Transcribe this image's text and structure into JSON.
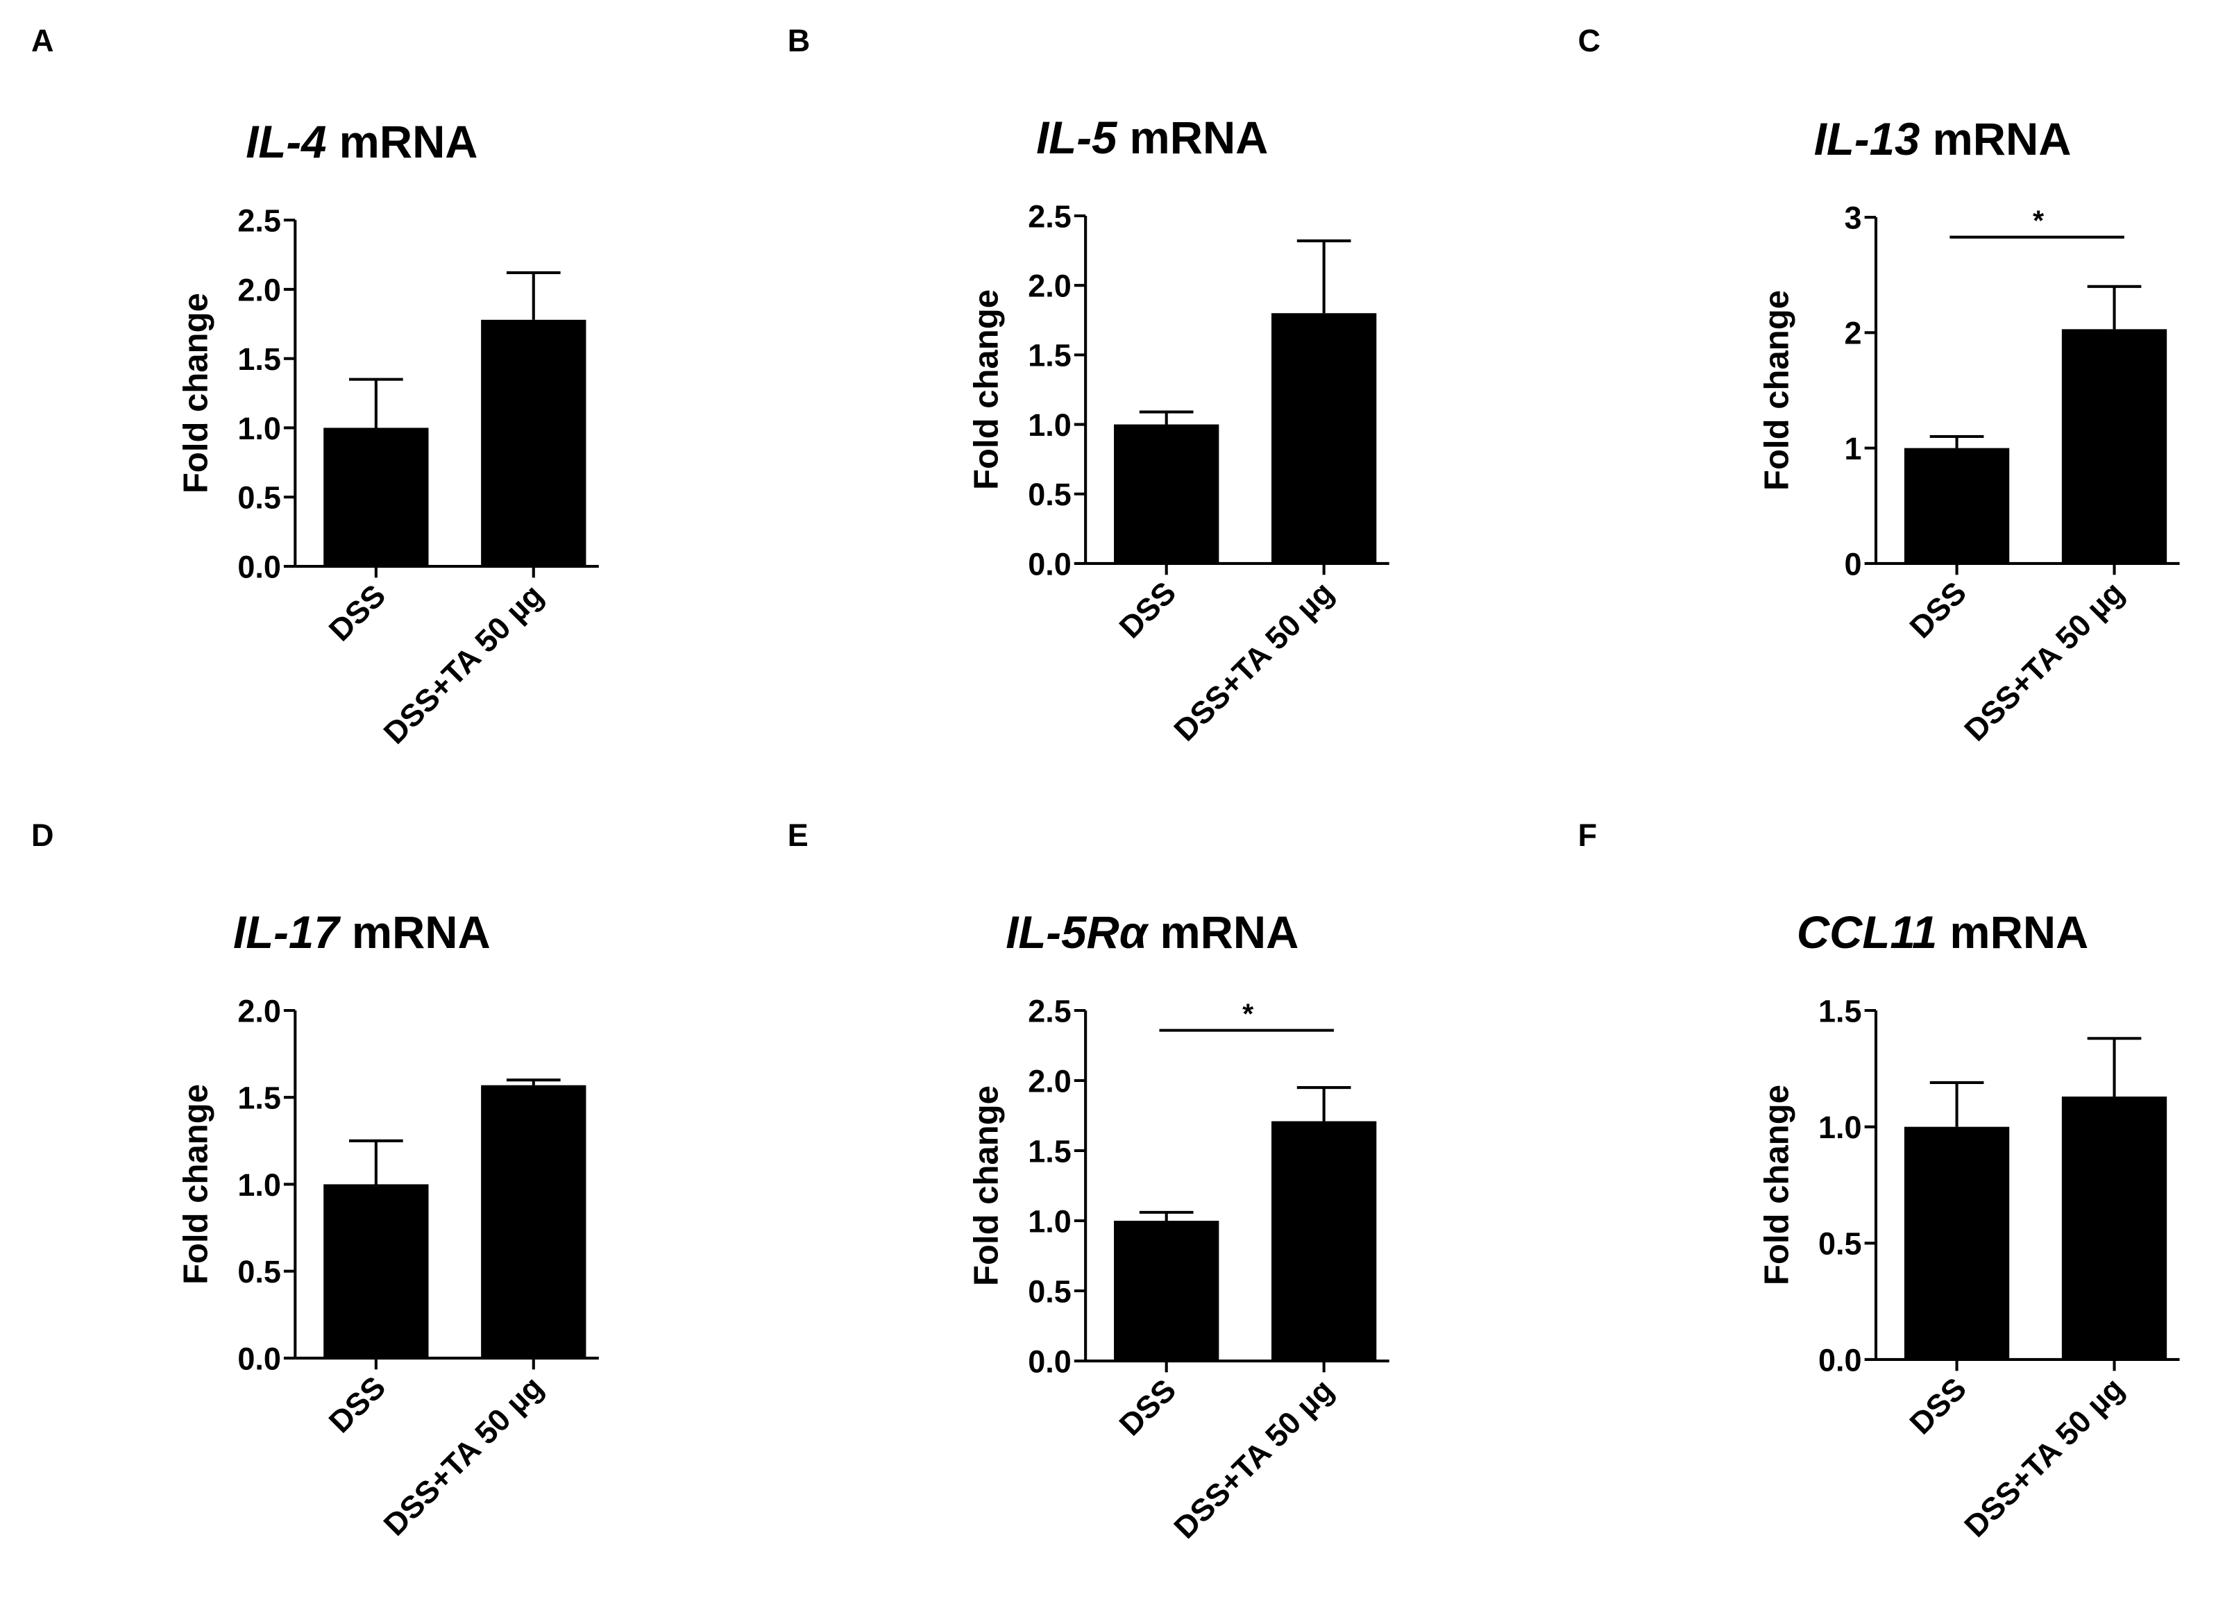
{
  "chart_data": [
    {
      "type": "bar",
      "panel": "A",
      "title_gene": "IL-4",
      "title_suffix": "mRNA",
      "ylabel": "Fold change",
      "categories": [
        "DSS",
        "DSS+TA 50 µg"
      ],
      "values": [
        1.0,
        1.78
      ],
      "errors": [
        0.35,
        0.34
      ],
      "ylim": [
        0,
        2.5
      ],
      "yticks": [
        "0.0",
        "0.5",
        "1.0",
        "1.5",
        "2.0",
        "2.5"
      ],
      "significance": null
    },
    {
      "type": "bar",
      "panel": "B",
      "title_gene": "IL-5",
      "title_suffix": "mRNA",
      "ylabel": "Fold change",
      "categories": [
        "DSS",
        "DSS+TA 50 µg"
      ],
      "values": [
        1.0,
        1.8
      ],
      "errors": [
        0.09,
        0.52
      ],
      "ylim": [
        0,
        2.5
      ],
      "yticks": [
        "0.0",
        "0.5",
        "1.0",
        "1.5",
        "2.0",
        "2.5"
      ],
      "significance": null
    },
    {
      "type": "bar",
      "panel": "C",
      "title_gene": "IL-13",
      "title_suffix": "mRNA",
      "ylabel": "Fold change",
      "categories": [
        "DSS",
        "DSS+TA 50 µg"
      ],
      "values": [
        1.0,
        2.03
      ],
      "errors": [
        0.1,
        0.37
      ],
      "ylim": [
        0,
        3
      ],
      "yticks": [
        "0",
        "1",
        "2",
        "3"
      ],
      "significance": "*"
    },
    {
      "type": "bar",
      "panel": "D",
      "title_gene": "IL-17",
      "title_suffix": "mRNA",
      "ylabel": "Fold change",
      "categories": [
        "DSS",
        "DSS+TA 50 µg"
      ],
      "values": [
        1.0,
        1.57
      ],
      "errors": [
        0.25,
        0.03
      ],
      "ylim": [
        0,
        2.0
      ],
      "yticks": [
        "0.0",
        "0.5",
        "1.0",
        "1.5",
        "2.0"
      ],
      "significance": null
    },
    {
      "type": "bar",
      "panel": "E",
      "title_gene": "IL-5Rα",
      "title_suffix": "mRNA",
      "ylabel": "Fold change",
      "categories": [
        "DSS",
        "DSS+TA 50 µg"
      ],
      "values": [
        1.0,
        1.71
      ],
      "errors": [
        0.06,
        0.24
      ],
      "ylim": [
        0,
        2.5
      ],
      "yticks": [
        "0.0",
        "0.5",
        "1.0",
        "1.5",
        "2.0",
        "2.5"
      ],
      "significance": "*"
    },
    {
      "type": "bar",
      "panel": "F",
      "title_gene": "CCL11",
      "title_suffix": "mRNA",
      "ylabel": "Fold change",
      "categories": [
        "DSS",
        "DSS+TA 50 µg"
      ],
      "values": [
        1.0,
        1.13
      ],
      "errors": [
        0.19,
        0.25
      ],
      "ylim": [
        0,
        1.5
      ],
      "yticks": [
        "0.0",
        "0.5",
        "1.0",
        "1.5"
      ],
      "significance": null
    }
  ],
  "colors": {
    "bar": "#000000",
    "axis": "#000000"
  }
}
